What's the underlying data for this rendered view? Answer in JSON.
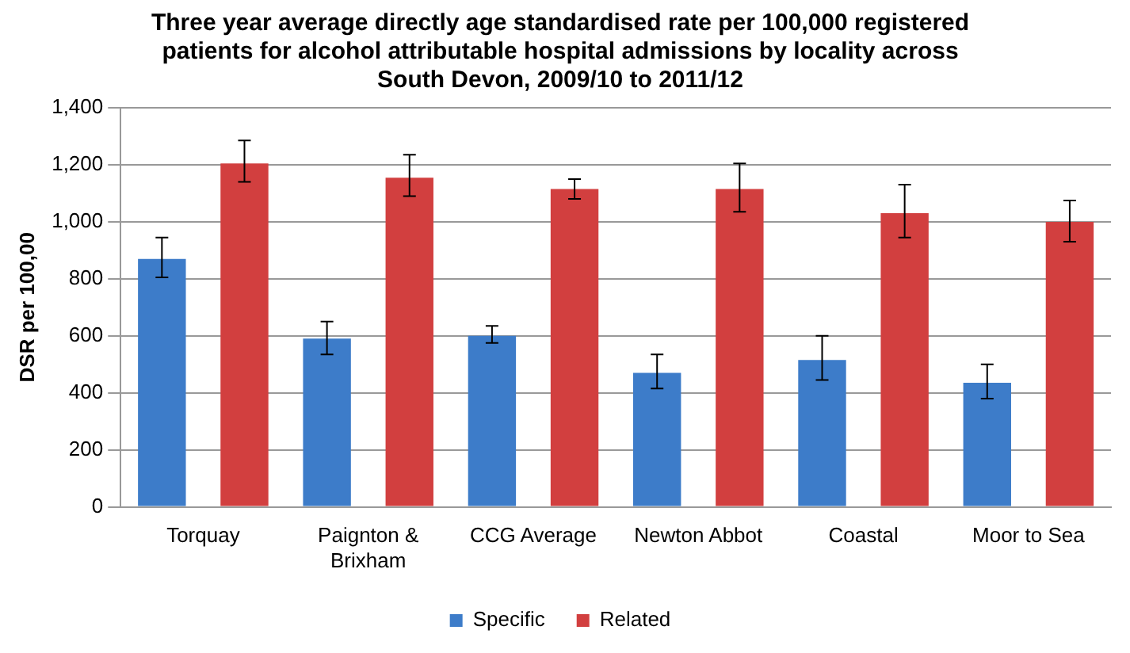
{
  "chart_data": {
    "type": "bar",
    "title": "Three year average directly age standardised rate per 100,000 registered patients for alcohol attributable hospital admissions by locality across South Devon, 2009/10 to 2011/12",
    "ylabel": "DSR per 100,00",
    "categories": [
      "Torquay",
      "Paignton & Brixham",
      "CCG Average",
      "Newton Abbot",
      "Coastal",
      "Moor to Sea"
    ],
    "series": [
      {
        "name": "Specific",
        "color": "#3d7cc9",
        "values": [
          870,
          590,
          600,
          470,
          515,
          435
        ],
        "errors": [
          [
            805,
            945
          ],
          [
            535,
            650
          ],
          [
            575,
            635
          ],
          [
            415,
            535
          ],
          [
            445,
            600
          ],
          [
            380,
            500
          ]
        ]
      },
      {
        "name": "Related",
        "color": "#d23f3f",
        "values": [
          1205,
          1155,
          1115,
          1115,
          1030,
          1000
        ],
        "errors": [
          [
            1140,
            1285
          ],
          [
            1090,
            1235
          ],
          [
            1080,
            1150
          ],
          [
            1035,
            1205
          ],
          [
            945,
            1130
          ],
          [
            930,
            1075
          ]
        ]
      }
    ],
    "ylim": [
      0,
      1400
    ],
    "yticks": [
      {
        "value": 0,
        "label": "0"
      },
      {
        "value": 200,
        "label": "200"
      },
      {
        "value": 400,
        "label": "400"
      },
      {
        "value": 600,
        "label": "600"
      },
      {
        "value": 800,
        "label": "800"
      },
      {
        "value": 1000,
        "label": "1,000"
      },
      {
        "value": 1200,
        "label": "1,200"
      },
      {
        "value": 1400,
        "label": "1,400"
      }
    ],
    "grid": "y",
    "legend": "bottom"
  }
}
